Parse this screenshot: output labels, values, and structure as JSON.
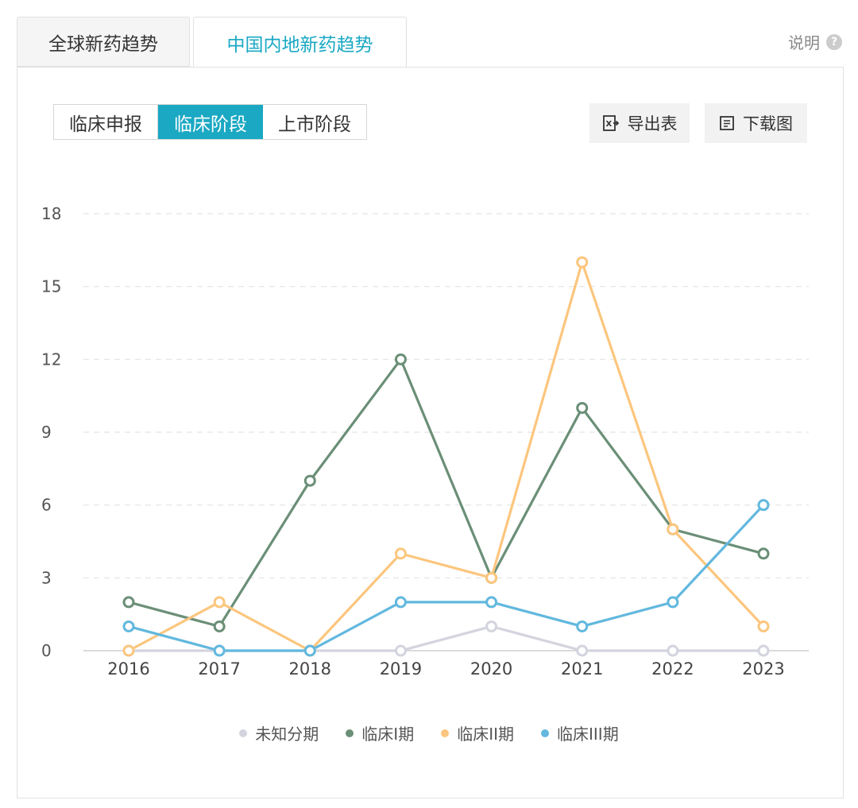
{
  "tabs": [
    {
      "label": "全球新药趋势",
      "active": false
    },
    {
      "label": "中国内地新药趋势",
      "active": true
    }
  ],
  "help_label": "说明",
  "help_icon": "question-icon",
  "segments": [
    {
      "label": "临床申报",
      "active": false
    },
    {
      "label": "临床阶段",
      "active": true
    },
    {
      "label": "上市阶段",
      "active": false
    }
  ],
  "actions": {
    "export_label": "导出表",
    "export_icon": "excel-export-icon",
    "download_label": "下载图",
    "download_icon": "document-icon"
  },
  "colors": {
    "accent": "#1aa8c3",
    "unknown": "#d3d4de",
    "phase1": "#6b8f77",
    "phase2": "#fcc67e",
    "phase3": "#62b8de"
  },
  "chart_data": {
    "type": "line",
    "categories": [
      "2016",
      "2017",
      "2018",
      "2019",
      "2020",
      "2021",
      "2022",
      "2023"
    ],
    "yticks": [
      0,
      3,
      6,
      9,
      12,
      15,
      18
    ],
    "ylim": [
      0,
      18
    ],
    "grid": true,
    "legend_position": "bottom",
    "series": [
      {
        "name": "未知分期",
        "color": "#d3d4de",
        "values": [
          0,
          0,
          0,
          0,
          1,
          0,
          0,
          0
        ]
      },
      {
        "name": "临床I期",
        "color": "#6b8f77",
        "values": [
          2,
          1,
          7,
          12,
          3,
          10,
          5,
          4
        ]
      },
      {
        "name": "临床II期",
        "color": "#fcc67e",
        "values": [
          0,
          2,
          0,
          4,
          3,
          16,
          5,
          1
        ]
      },
      {
        "name": "临床III期",
        "color": "#62b8de",
        "values": [
          1,
          0,
          0,
          2,
          2,
          1,
          2,
          6
        ]
      }
    ]
  }
}
